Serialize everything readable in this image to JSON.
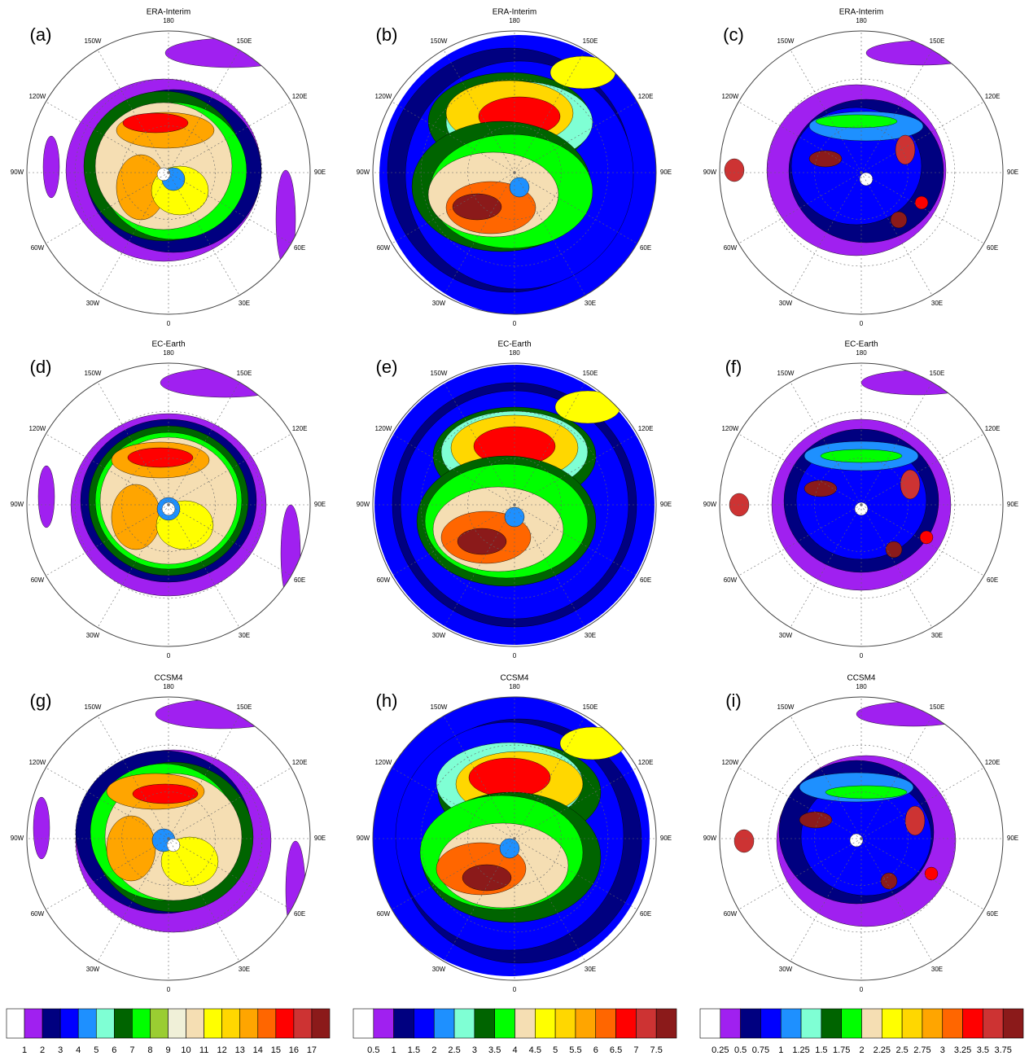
{
  "panels": [
    {
      "label": "(a)",
      "title": "ERA-Interim"
    },
    {
      "label": "(b)",
      "title": "ERA-Interim"
    },
    {
      "label": "(c)",
      "title": "ERA-Interim"
    },
    {
      "label": "(d)",
      "title": "EC-Earth"
    },
    {
      "label": "(e)",
      "title": "EC-Earth"
    },
    {
      "label": "(f)",
      "title": "EC-Earth"
    },
    {
      "label": "(g)",
      "title": "CCSM4"
    },
    {
      "label": "(h)",
      "title": "CCSM4"
    },
    {
      "label": "(i)",
      "title": "CCSM4"
    }
  ],
  "longitude_labels": [
    "180",
    "150E",
    "120E",
    "90E",
    "60E",
    "30E",
    "0",
    "30W",
    "60W",
    "90W",
    "120W",
    "150W"
  ],
  "colorbars": [
    {
      "colors": [
        "#ffffff",
        "#a020f0",
        "#000080",
        "#0000ff",
        "#1e90ff",
        "#7fffd4",
        "#006400",
        "#00ff00",
        "#9acd32",
        "#f0f0d8",
        "#f5deb3",
        "#ffff00",
        "#ffd700",
        "#ffa500",
        "#ff6600",
        "#ff0000",
        "#cd3333",
        "#8b1a1a"
      ],
      "labels": [
        "1",
        "2",
        "3",
        "4",
        "5",
        "6",
        "7",
        "8",
        "9",
        "10",
        "11",
        "12",
        "13",
        "14",
        "15",
        "16",
        "17"
      ]
    },
    {
      "colors": [
        "#ffffff",
        "#a020f0",
        "#000080",
        "#0000ff",
        "#1e90ff",
        "#7fffd4",
        "#006400",
        "#00ff00",
        "#f5deb3",
        "#ffff00",
        "#ffd700",
        "#ffa500",
        "#ff6600",
        "#ff0000",
        "#cd3333",
        "#8b1a1a"
      ],
      "labels": [
        "0.5",
        "1",
        "1.5",
        "2",
        "2.5",
        "3",
        "3.5",
        "4",
        "4.5",
        "5",
        "5.5",
        "6",
        "6.5",
        "7",
        "7.5"
      ]
    },
    {
      "colors": [
        "#ffffff",
        "#a020f0",
        "#000080",
        "#0000ff",
        "#1e90ff",
        "#7fffd4",
        "#006400",
        "#00ff00",
        "#f5deb3",
        "#ffff00",
        "#ffd700",
        "#ffa500",
        "#ff6600",
        "#ff0000",
        "#cd3333",
        "#8b1a1a"
      ],
      "labels": [
        "0.25",
        "0.5",
        "0.75",
        "1",
        "1.25",
        "1.5",
        "1.75",
        "2",
        "2.25",
        "2.5",
        "2.75",
        "3",
        "3.25",
        "3.5",
        "3.75"
      ]
    }
  ]
}
